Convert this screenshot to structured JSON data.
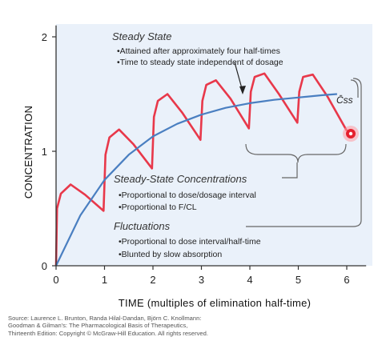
{
  "chart_data": {
    "type": "line",
    "xlabel": "TIME (multiples of elimination half-time)",
    "ylabel": "CONCENTRATION",
    "xlim": [
      0,
      6.4
    ],
    "ylim": [
      0,
      2.1
    ],
    "x_ticks": [
      "0",
      "1",
      "2",
      "3",
      "4",
      "5",
      "6"
    ],
    "y_ticks": [
      "0",
      "1",
      "2"
    ],
    "grid": false,
    "dose_interval": 1,
    "series": [
      {
        "color": "#e8384a",
        "points": [
          [
            0,
            0
          ],
          [
            0.02,
            0.5
          ],
          [
            0.1,
            0.63
          ],
          [
            0.3,
            0.71
          ],
          [
            0.6,
            0.62
          ],
          [
            0.98,
            0.48
          ],
          [
            1.02,
            0.97
          ],
          [
            1.1,
            1.12
          ],
          [
            1.3,
            1.19
          ],
          [
            1.6,
            1.06
          ],
          [
            1.98,
            0.85
          ],
          [
            2.02,
            1.3
          ],
          [
            2.1,
            1.44
          ],
          [
            2.3,
            1.5
          ],
          [
            2.6,
            1.34
          ],
          [
            2.98,
            1.1
          ],
          [
            3.02,
            1.44
          ],
          [
            3.1,
            1.58
          ],
          [
            3.3,
            1.62
          ],
          [
            3.6,
            1.46
          ],
          [
            3.98,
            1.2
          ],
          [
            4.02,
            1.52
          ],
          [
            4.1,
            1.65
          ],
          [
            4.3,
            1.68
          ],
          [
            4.6,
            1.5
          ],
          [
            4.98,
            1.25
          ],
          [
            5.02,
            1.52
          ],
          [
            5.1,
            1.65
          ],
          [
            5.3,
            1.67
          ],
          [
            5.6,
            1.48
          ],
          [
            6.0,
            1.18
          ]
        ]
      },
      {
        "color": "#4a7fc1",
        "points": [
          [
            0,
            0
          ],
          [
            0.5,
            0.44
          ],
          [
            1,
            0.75
          ],
          [
            1.5,
            0.97
          ],
          [
            2,
            1.13
          ],
          [
            2.5,
            1.24
          ],
          [
            3,
            1.32
          ],
          [
            3.5,
            1.38
          ],
          [
            4,
            1.42
          ],
          [
            4.5,
            1.45
          ],
          [
            5,
            1.47
          ],
          [
            5.5,
            1.49
          ],
          [
            5.8,
            1.5
          ]
        ]
      }
    ],
    "css_label": "C̄ss",
    "annotations": [
      {
        "heading": "Steady State",
        "bullets": [
          "•Attained after approximately four half-times",
          "•Time to steady state independent of dosage"
        ]
      },
      {
        "heading": "Steady-State Concentrations",
        "bullets": [
          "•Proportional to dose/dosage interval",
          "•Proportional to F/CL"
        ]
      },
      {
        "heading": "Fluctuations",
        "bullets": [
          "•Proportional to dose interval/half-time",
          "•Blunted by slow absorption"
        ]
      }
    ],
    "source_lines": [
      "Source: Laurence L. Brunton, Randa Hilal-Dandan, Björn C. Knollmann:",
      "Goodman & Gilman's: The Pharmacological Basis of Therapeutics,",
      "Thirteenth Edition: Copyright © McGraw-Hill Education. All rights reserved."
    ]
  }
}
